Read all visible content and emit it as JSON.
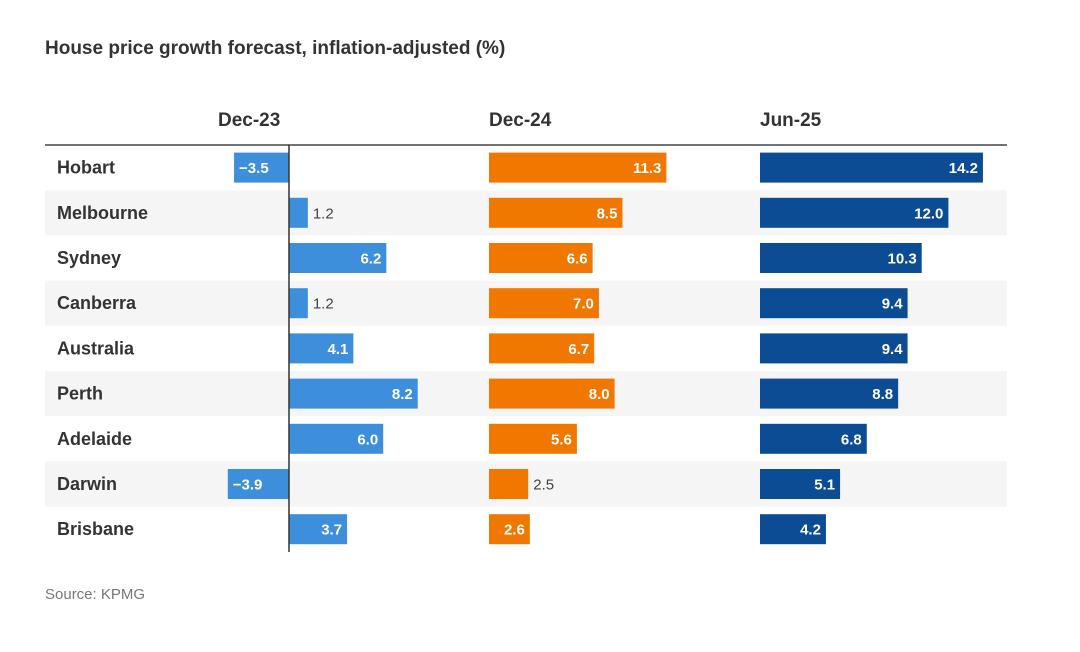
{
  "title": "House price growth forecast, inflation-adjusted (%)",
  "source": "Source: KPMG",
  "colors": {
    "dec23": "#3d8fdc",
    "dec24": "#f07800",
    "jun25": "#0b4c94",
    "row_alt": "#f5f5f5",
    "axis": "#333333",
    "header_rule": "#444444"
  },
  "chart_data": {
    "type": "bar",
    "orientation": "horizontal",
    "title": "House price growth forecast, inflation-adjusted (%)",
    "categories": [
      "Hobart",
      "Melbourne",
      "Sydney",
      "Canberra",
      "Australia",
      "Perth",
      "Adelaide",
      "Darwin",
      "Brisbane"
    ],
    "series": [
      {
        "name": "Dec-23",
        "color": "#3d8fdc",
        "values": [
          -3.5,
          1.2,
          6.2,
          1.2,
          4.1,
          8.2,
          6.0,
          -3.9,
          3.7
        ],
        "labels": [
          "−3.5",
          "1.2",
          "6.2",
          "1.2",
          "4.1",
          "8.2",
          "6.0",
          "−3.9",
          "3.7"
        ]
      },
      {
        "name": "Dec-24",
        "color": "#f07800",
        "values": [
          11.3,
          8.5,
          6.6,
          7.0,
          6.7,
          8.0,
          5.6,
          2.5,
          2.6
        ],
        "labels": [
          "11.3",
          "8.5",
          "6.6",
          "7.0",
          "6.7",
          "8.0",
          "5.6",
          "2.5",
          "2.6"
        ]
      },
      {
        "name": "Jun-25",
        "color": "#0b4c94",
        "values": [
          14.2,
          12.0,
          10.3,
          9.4,
          9.4,
          8.8,
          6.8,
          5.1,
          4.2
        ],
        "labels": [
          "14.2",
          "12.0",
          "10.3",
          "9.4",
          "9.4",
          "8.8",
          "6.8",
          "5.1",
          "4.2"
        ]
      }
    ],
    "source": "Source: KPMG"
  }
}
